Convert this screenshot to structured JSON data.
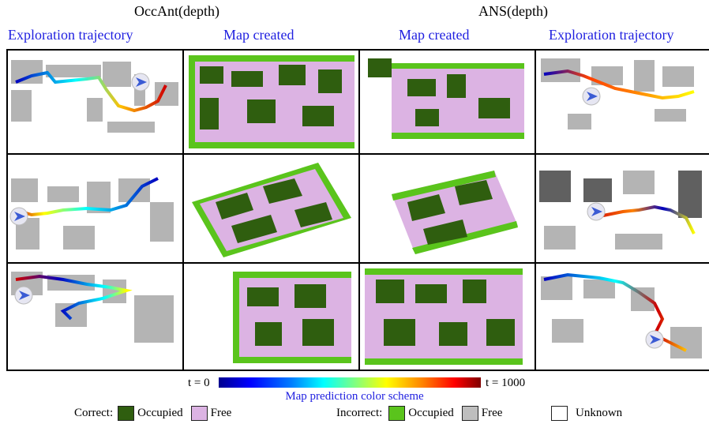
{
  "headers": {
    "method_left": "OccAnt(depth)",
    "method_right": "ANS(depth)",
    "columns": [
      "Exploration trajectory",
      "Map created",
      "Map created",
      "Exploration trajectory"
    ]
  },
  "colorbar": {
    "start_label": "t = 0",
    "end_label": "t = 1000",
    "title": "Map prediction color scheme"
  },
  "legend": {
    "correct_label": "Correct:",
    "incorrect_label": "Incorrect:",
    "items": [
      {
        "group": "correct",
        "label": "Occupied",
        "color": "#2f5e0f"
      },
      {
        "group": "correct",
        "label": "Free",
        "color": "#dcb3e3"
      },
      {
        "group": "incorrect",
        "label": "Occupied",
        "color": "#5ac41c"
      },
      {
        "group": "incorrect",
        "label": "Free",
        "color": "#bebebe"
      },
      {
        "group": "none",
        "label": "Unknown",
        "color": "#ffffff"
      }
    ]
  },
  "colors": {
    "title_blue": "#1f1fe0",
    "wall_gray": "#b4b4b4",
    "wall_dark": "#606060",
    "agent_marker": "#3b5bd4"
  }
}
